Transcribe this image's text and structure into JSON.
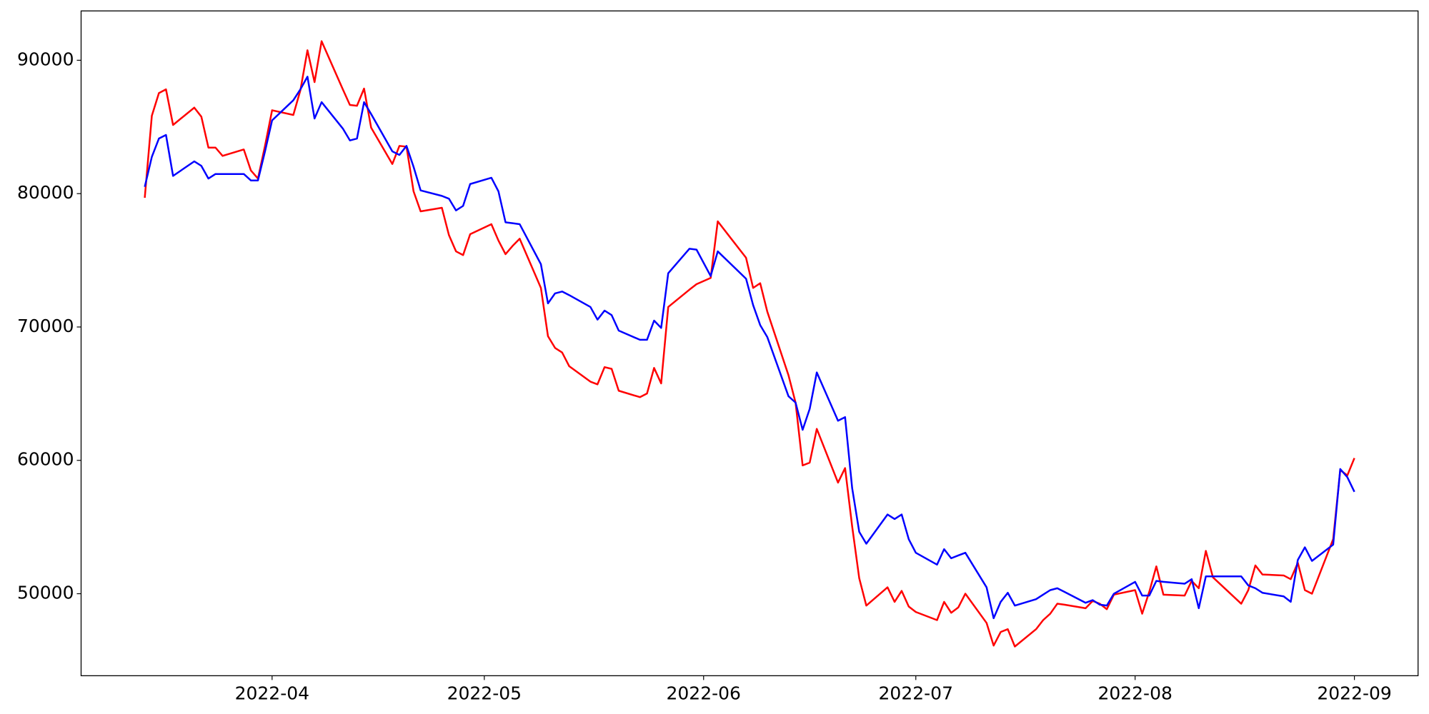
{
  "chart_data": {
    "type": "line",
    "x": [
      "2022-03-14",
      "2022-03-15",
      "2022-03-16",
      "2022-03-17",
      "2022-03-18",
      "2022-03-21",
      "2022-03-22",
      "2022-03-23",
      "2022-03-24",
      "2022-03-25",
      "2022-03-28",
      "2022-03-29",
      "2022-03-30",
      "2022-03-31",
      "2022-04-01",
      "2022-04-04",
      "2022-04-05",
      "2022-04-06",
      "2022-04-07",
      "2022-04-08",
      "2022-04-11",
      "2022-04-12",
      "2022-04-13",
      "2022-04-14",
      "2022-04-15",
      "2022-04-18",
      "2022-04-19",
      "2022-04-20",
      "2022-04-21",
      "2022-04-22",
      "2022-04-25",
      "2022-04-26",
      "2022-04-27",
      "2022-04-28",
      "2022-04-29",
      "2022-05-02",
      "2022-05-03",
      "2022-05-04",
      "2022-05-05",
      "2022-05-06",
      "2022-05-09",
      "2022-05-10",
      "2022-05-11",
      "2022-05-12",
      "2022-05-13",
      "2022-05-16",
      "2022-05-17",
      "2022-05-18",
      "2022-05-19",
      "2022-05-20",
      "2022-05-23",
      "2022-05-24",
      "2022-05-25",
      "2022-05-26",
      "2022-05-27",
      "2022-05-30",
      "2022-05-31",
      "2022-06-02",
      "2022-06-03",
      "2022-06-07",
      "2022-06-08",
      "2022-06-09",
      "2022-06-10",
      "2022-06-13",
      "2022-06-14",
      "2022-06-15",
      "2022-06-16",
      "2022-06-17",
      "2022-06-20",
      "2022-06-21",
      "2022-06-22",
      "2022-06-23",
      "2022-06-24",
      "2022-06-27",
      "2022-06-28",
      "2022-06-29",
      "2022-06-30",
      "2022-07-01",
      "2022-07-04",
      "2022-07-05",
      "2022-07-06",
      "2022-07-07",
      "2022-07-08",
      "2022-07-11",
      "2022-07-12",
      "2022-07-13",
      "2022-07-14",
      "2022-07-15",
      "2022-07-18",
      "2022-07-19",
      "2022-07-20",
      "2022-07-21",
      "2022-07-22",
      "2022-07-25",
      "2022-07-26",
      "2022-07-27",
      "2022-07-28",
      "2022-07-29",
      "2022-08-01",
      "2022-08-02",
      "2022-08-03",
      "2022-08-04",
      "2022-08-05",
      "2022-08-08",
      "2022-08-09",
      "2022-08-10",
      "2022-08-11",
      "2022-08-12",
      "2022-08-16",
      "2022-08-17",
      "2022-08-18",
      "2022-08-19",
      "2022-08-22",
      "2022-08-23",
      "2022-08-24",
      "2022-08-25",
      "2022-08-26",
      "2022-08-29",
      "2022-08-30",
      "2022-08-31",
      "2022-09-01"
    ],
    "series": [
      {
        "color": "#ff0000",
        "values": [
          79690,
          85840,
          87540,
          87820,
          85150,
          86450,
          85770,
          83450,
          83450,
          82830,
          83310,
          81740,
          81130,
          83580,
          86250,
          85900,
          87750,
          90750,
          88360,
          91430,
          87820,
          86650,
          86590,
          87880,
          84950,
          82220,
          83580,
          83520,
          80170,
          78670,
          78940,
          76890,
          75670,
          75390,
          76960,
          77710,
          76480,
          75460,
          76080,
          76620,
          72930,
          69310,
          68430,
          68090,
          67060,
          65900,
          65700,
          66990,
          66860,
          65220,
          64740,
          65010,
          66930,
          65770,
          71500,
          72800,
          73210,
          73680,
          77920,
          75190,
          72930,
          73280,
          71160,
          66380,
          64330,
          59620,
          59830,
          62360,
          58330,
          59420,
          55050,
          51160,
          49110,
          50480,
          49390,
          50210,
          49040,
          48630,
          48020,
          49390,
          48570,
          48970,
          50000,
          47810,
          46110,
          47130,
          47340,
          46040,
          47340,
          48020,
          48500,
          49250,
          49180,
          48910,
          49460,
          49250,
          48840,
          49930,
          50270,
          48500,
          50140,
          52050,
          49930,
          49860,
          50960,
          50410,
          53210,
          51230,
          49250,
          50270,
          52120,
          51440,
          51370,
          51090,
          52320,
          50270,
          50000,
          54090,
          59280,
          58870,
          60170
        ]
      },
      {
        "color": "#0000ff",
        "values": [
          80510,
          82760,
          84130,
          84400,
          81330,
          82420,
          82080,
          81130,
          81470,
          81470,
          81470,
          80990,
          80990,
          83170,
          85490,
          87000,
          87820,
          88770,
          85630,
          86860,
          84880,
          83990,
          84130,
          86860,
          85970,
          83170,
          82900,
          83580,
          82010,
          80240,
          79830,
          79620,
          78740,
          79080,
          80720,
          81190,
          80170,
          77850,
          77780,
          77710,
          74710,
          71770,
          72520,
          72660,
          72390,
          71500,
          70550,
          71230,
          70890,
          69730,
          69040,
          69040,
          70480,
          69930,
          74030,
          75870,
          75800,
          73820,
          75670,
          73620,
          71640,
          70140,
          69250,
          64810,
          64330,
          62290,
          63860,
          66590,
          62970,
          63240,
          57920,
          54640,
          53750,
          55940,
          55600,
          55940,
          54090,
          53070,
          52180,
          53340,
          52660,
          52870,
          53070,
          50480,
          48160,
          49390,
          50070,
          49110,
          49590,
          49930,
          50270,
          50410,
          50140,
          49320,
          49520,
          49180,
          49110,
          50000,
          50890,
          49860,
          49860,
          50960,
          50890,
          50750,
          51090,
          48910,
          51300,
          51300,
          51300,
          50620,
          50410,
          50070,
          49800,
          49390,
          52530,
          53480,
          52460,
          53680,
          59350,
          58740,
          57640
        ]
      }
    ],
    "xlim": [
      "2022-03-05",
      "2022-09-10"
    ],
    "xticks": [
      {
        "value": "2022-04-01",
        "label": "2022-04"
      },
      {
        "value": "2022-05-01",
        "label": "2022-05"
      },
      {
        "value": "2022-06-01",
        "label": "2022-06"
      },
      {
        "value": "2022-07-01",
        "label": "2022-07"
      },
      {
        "value": "2022-08-01",
        "label": "2022-08"
      },
      {
        "value": "2022-09-01",
        "label": "2022-09"
      }
    ],
    "ylim": [
      43850,
      93700
    ],
    "yticks": [
      50000,
      60000,
      70000,
      80000,
      90000
    ],
    "grid": false
  }
}
